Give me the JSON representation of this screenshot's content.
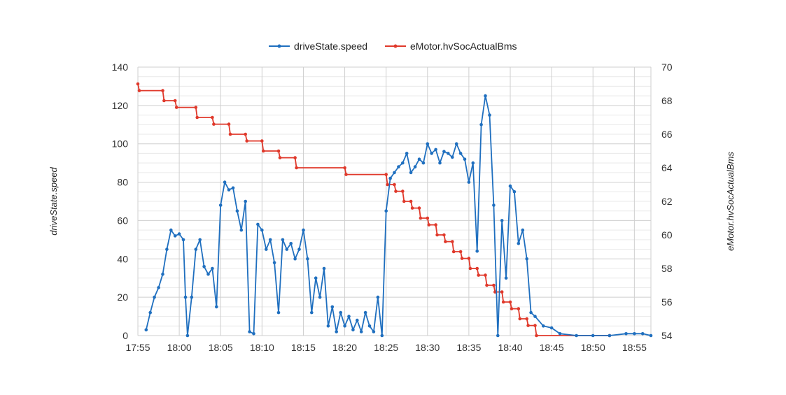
{
  "chart_data": {
    "type": "line",
    "x_start": "17:55",
    "x_end": "18:57",
    "x_ticks": [
      "17:55",
      "18:00",
      "18:05",
      "18:10",
      "18:15",
      "18:20",
      "18:25",
      "18:30",
      "18:35",
      "18:40",
      "18:45",
      "18:50",
      "18:55"
    ],
    "ylabel_left": "driveState.speed",
    "ylabel_right": "eMotor.hvSocActualBms",
    "ylim_left": [
      0,
      140
    ],
    "ylim_right": [
      54,
      70
    ],
    "y_ticks_left": [
      "0",
      "20",
      "40",
      "60",
      "80",
      "100",
      "120",
      "140"
    ],
    "y_ticks_right": [
      "54",
      "56",
      "58",
      "60",
      "62",
      "64",
      "66",
      "68",
      "70"
    ],
    "grid": true,
    "legend_position": "top",
    "colors": {
      "speed": "#1f6fbf",
      "soc": "#e0392b"
    },
    "series": [
      {
        "name": "driveState.speed",
        "axis": "left",
        "points": [
          [
            "17:56",
            3
          ],
          [
            "17:56:30",
            12
          ],
          [
            "17:57",
            20
          ],
          [
            "17:57:30",
            25
          ],
          [
            "17:58",
            32
          ],
          [
            "17:58:30",
            45
          ],
          [
            "17:59",
            55
          ],
          [
            "17:59:30",
            52
          ],
          [
            "18:00",
            53
          ],
          [
            "18:00:30",
            50
          ],
          [
            "18:00:45",
            20
          ],
          [
            "18:01",
            0
          ],
          [
            "18:01:30",
            20
          ],
          [
            "18:02",
            45
          ],
          [
            "18:02:30",
            50
          ],
          [
            "18:03",
            36
          ],
          [
            "18:03:30",
            32
          ],
          [
            "18:04",
            35
          ],
          [
            "18:04:30",
            15
          ],
          [
            "18:05",
            68
          ],
          [
            "18:05:30",
            80
          ],
          [
            "18:06",
            76
          ],
          [
            "18:06:30",
            77
          ],
          [
            "18:07",
            65
          ],
          [
            "18:07:30",
            55
          ],
          [
            "18:08",
            70
          ],
          [
            "18:08:30",
            2
          ],
          [
            "18:09",
            1
          ],
          [
            "18:09:30",
            58
          ],
          [
            "18:10",
            55
          ],
          [
            "18:10:30",
            45
          ],
          [
            "18:11",
            50
          ],
          [
            "18:11:30",
            38
          ],
          [
            "18:12",
            12
          ],
          [
            "18:12:30",
            50
          ],
          [
            "18:13",
            45
          ],
          [
            "18:13:30",
            48
          ],
          [
            "18:14",
            40
          ],
          [
            "18:14:30",
            45
          ],
          [
            "18:15",
            55
          ],
          [
            "18:15:30",
            40
          ],
          [
            "18:16",
            12
          ],
          [
            "18:16:30",
            30
          ],
          [
            "18:17",
            20
          ],
          [
            "18:17:30",
            35
          ],
          [
            "18:18",
            5
          ],
          [
            "18:18:30",
            15
          ],
          [
            "18:19",
            2
          ],
          [
            "18:19:30",
            12
          ],
          [
            "18:20",
            5
          ],
          [
            "18:20:30",
            10
          ],
          [
            "18:21",
            3
          ],
          [
            "18:21:30",
            8
          ],
          [
            "18:22",
            2
          ],
          [
            "18:22:30",
            12
          ],
          [
            "18:23",
            5
          ],
          [
            "18:23:30",
            2
          ],
          [
            "18:24",
            20
          ],
          [
            "18:24:30",
            0
          ],
          [
            "18:25",
            65
          ],
          [
            "18:25:30",
            82
          ],
          [
            "18:26",
            85
          ],
          [
            "18:26:30",
            88
          ],
          [
            "18:27",
            90
          ],
          [
            "18:27:30",
            95
          ],
          [
            "18:28",
            85
          ],
          [
            "18:28:30",
            88
          ],
          [
            "18:29",
            92
          ],
          [
            "18:29:30",
            90
          ],
          [
            "18:30",
            100
          ],
          [
            "18:30:30",
            95
          ],
          [
            "18:31",
            97
          ],
          [
            "18:31:30",
            90
          ],
          [
            "18:32",
            96
          ],
          [
            "18:32:30",
            95
          ],
          [
            "18:33",
            93
          ],
          [
            "18:33:30",
            100
          ],
          [
            "18:34",
            95
          ],
          [
            "18:34:30",
            92
          ],
          [
            "18:35",
            80
          ],
          [
            "18:35:30",
            90
          ],
          [
            "18:36",
            44
          ],
          [
            "18:36:30",
            110
          ],
          [
            "18:37",
            125
          ],
          [
            "18:37:30",
            115
          ],
          [
            "18:38",
            68
          ],
          [
            "18:38:30",
            0
          ],
          [
            "18:39",
            60
          ],
          [
            "18:39:30",
            30
          ],
          [
            "18:40",
            78
          ],
          [
            "18:40:30",
            75
          ],
          [
            "18:41",
            48
          ],
          [
            "18:41:30",
            55
          ],
          [
            "18:42",
            40
          ],
          [
            "18:42:30",
            12
          ],
          [
            "18:43",
            10
          ],
          [
            "18:44",
            5
          ],
          [
            "18:45",
            4
          ],
          [
            "18:46",
            1
          ],
          [
            "18:48",
            0
          ],
          [
            "18:50",
            0
          ],
          [
            "18:52",
            0
          ],
          [
            "18:54",
            1
          ],
          [
            "18:55",
            1
          ],
          [
            "18:56",
            1
          ],
          [
            "18:57",
            0
          ]
        ]
      },
      {
        "name": "eMotor.hvSocActualBms",
        "axis": "right",
        "points": [
          [
            "17:55",
            69
          ],
          [
            "17:55:10",
            68.6
          ],
          [
            "17:58",
            68.6
          ],
          [
            "17:58:10",
            68.0
          ],
          [
            "17:59:30",
            68.0
          ],
          [
            "17:59:40",
            67.6
          ],
          [
            "18:02",
            67.6
          ],
          [
            "18:02:10",
            67.0
          ],
          [
            "18:04",
            67.0
          ],
          [
            "18:04:10",
            66.6
          ],
          [
            "18:06",
            66.6
          ],
          [
            "18:06:10",
            66.0
          ],
          [
            "18:08",
            66.0
          ],
          [
            "18:08:10",
            65.6
          ],
          [
            "18:10",
            65.6
          ],
          [
            "18:10:10",
            65.0
          ],
          [
            "18:12",
            65.0
          ],
          [
            "18:12:10",
            64.6
          ],
          [
            "18:14",
            64.6
          ],
          [
            "18:14:10",
            64.0
          ],
          [
            "18:20",
            64.0
          ],
          [
            "18:20:10",
            63.6
          ],
          [
            "18:25",
            63.6
          ],
          [
            "18:25:10",
            63.0
          ],
          [
            "18:26",
            63.0
          ],
          [
            "18:26:10",
            62.6
          ],
          [
            "18:27",
            62.6
          ],
          [
            "18:27:10",
            62.0
          ],
          [
            "18:28",
            62.0
          ],
          [
            "18:28:10",
            61.6
          ],
          [
            "18:29",
            61.6
          ],
          [
            "18:29:10",
            61.0
          ],
          [
            "18:30",
            61.0
          ],
          [
            "18:30:10",
            60.6
          ],
          [
            "18:31",
            60.6
          ],
          [
            "18:31:10",
            60.0
          ],
          [
            "18:32",
            60.0
          ],
          [
            "18:32:10",
            59.6
          ],
          [
            "18:33",
            59.6
          ],
          [
            "18:33:10",
            59.0
          ],
          [
            "18:34",
            59.0
          ],
          [
            "18:34:10",
            58.6
          ],
          [
            "18:35",
            58.6
          ],
          [
            "18:35:10",
            58.0
          ],
          [
            "18:36",
            58.0
          ],
          [
            "18:36:10",
            57.6
          ],
          [
            "18:37",
            57.6
          ],
          [
            "18:37:10",
            57.0
          ],
          [
            "18:38",
            57.0
          ],
          [
            "18:38:10",
            56.6
          ],
          [
            "18:39",
            56.6
          ],
          [
            "18:39:10",
            56.0
          ],
          [
            "18:40",
            56.0
          ],
          [
            "18:40:10",
            55.6
          ],
          [
            "18:41",
            55.6
          ],
          [
            "18:41:10",
            55.0
          ],
          [
            "18:42",
            55.0
          ],
          [
            "18:42:10",
            54.6
          ],
          [
            "18:43",
            54.6
          ],
          [
            "18:43:10",
            54.0
          ],
          [
            "18:52",
            54.0
          ]
        ]
      }
    ]
  }
}
